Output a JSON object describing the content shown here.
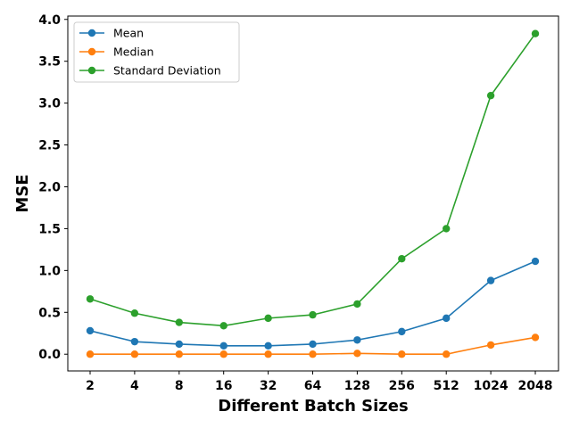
{
  "chart_data": {
    "type": "line",
    "xlabel": "Different Batch Sizes",
    "ylabel": "MSE",
    "categories": [
      "2",
      "4",
      "8",
      "16",
      "32",
      "64",
      "128",
      "256",
      "512",
      "1024",
      "2048"
    ],
    "y_ticks": [
      "0.0",
      "0.5",
      "1.0",
      "1.5",
      "2.0",
      "2.5",
      "3.0",
      "3.5",
      "4.0"
    ],
    "ylim": [
      -0.2,
      4.04
    ],
    "grid": false,
    "legend_position": "upper-left",
    "series": [
      {
        "name": "Mean",
        "color": "#1f77b4",
        "values": [
          0.28,
          0.15,
          0.12,
          0.1,
          0.1,
          0.12,
          0.17,
          0.27,
          0.43,
          0.88,
          1.11
        ]
      },
      {
        "name": "Median",
        "color": "#ff7f0e",
        "values": [
          0.0,
          0.0,
          0.0,
          0.0,
          0.0,
          0.0,
          0.01,
          0.0,
          0.0,
          0.11,
          0.2
        ]
      },
      {
        "name": "Standard Deviation",
        "color": "#2ca02c",
        "values": [
          0.66,
          0.49,
          0.38,
          0.34,
          0.43,
          0.47,
          0.6,
          1.14,
          1.5,
          3.09,
          3.83
        ]
      }
    ]
  }
}
